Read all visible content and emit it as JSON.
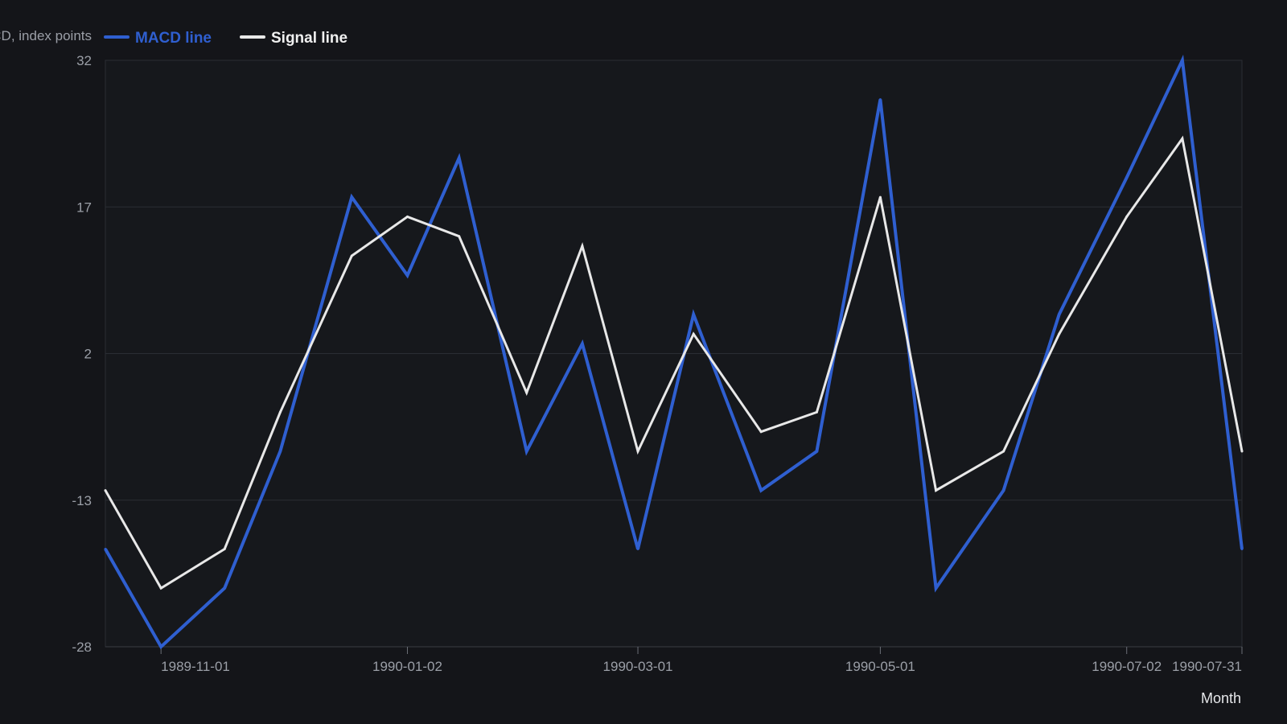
{
  "chart_data": {
    "type": "line",
    "title": "",
    "xlabel": "Month",
    "ylabel": "MACD, index points",
    "ylim": [
      -28,
      32
    ],
    "yticks": [
      32,
      17,
      2,
      -13,
      -28
    ],
    "x_ticks": [
      "1989-11-01",
      "1990-01-02",
      "1990-03-01",
      "1990-05-01",
      "1990-07-02",
      "1990-07-31"
    ],
    "grid": "horizontal",
    "legend_position": "top-left",
    "x": [
      "1989-10-18",
      "1989-11-01",
      "1989-11-17",
      "1989-12-01",
      "1989-12-19",
      "1990-01-02",
      "1990-01-15",
      "1990-02-01",
      "1990-02-15",
      "1990-03-01",
      "1990-03-15",
      "1990-04-01",
      "1990-04-15",
      "1990-05-01",
      "1990-05-15",
      "1990-06-01",
      "1990-06-15",
      "1990-07-02",
      "1990-07-16",
      "1990-07-31"
    ],
    "series": [
      {
        "name": "MACD line",
        "color": "#2f5fd0",
        "values": [
          -18,
          -28,
          -22,
          -8,
          18,
          10,
          22,
          -8,
          3,
          -18,
          6,
          -12,
          -8,
          28,
          -22,
          -12,
          6,
          20,
          32,
          -18
        ]
      },
      {
        "name": "Signal line",
        "color": "#e8e8e8",
        "values": [
          -12,
          -22,
          -18,
          -4,
          12,
          16,
          14,
          -2,
          13,
          -8,
          4,
          -6,
          -4,
          18,
          -12,
          -8,
          4,
          16,
          24,
          -8
        ]
      }
    ]
  }
}
